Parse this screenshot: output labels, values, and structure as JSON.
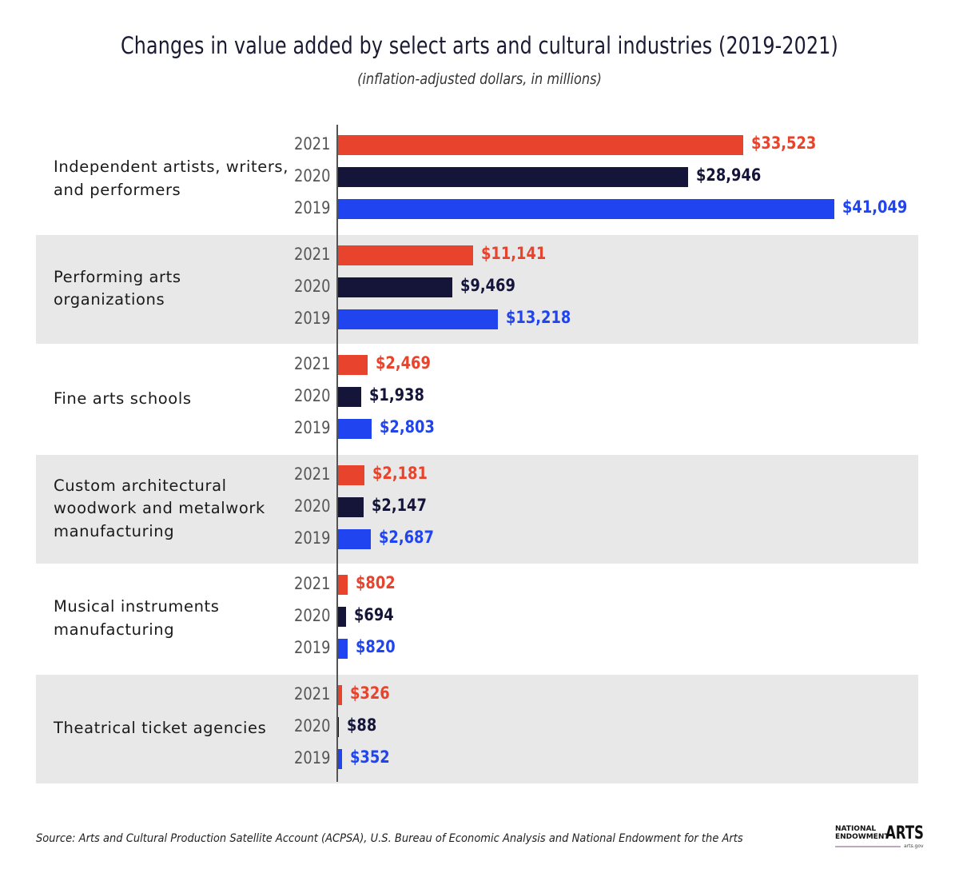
{
  "chart_data": {
    "type": "bar",
    "orientation": "horizontal",
    "title": "Changes in value added by select arts and cultural industries (2019-2021)",
    "subtitle": "(inflation-adjusted dollars, in millions)",
    "xlabel": "",
    "ylabel": "",
    "xlim": [
      0,
      41049
    ],
    "grid": false,
    "legend": "none",
    "value_prefix": "$",
    "colors": {
      "2021": "#e8432d",
      "2020": "#15153a",
      "2019": "#1f44f0"
    },
    "categories": [
      {
        "label": "Independent artists, writers, and performers",
        "lines": [
          "Independent artists, writers,",
          "and performers"
        ],
        "shaded": false,
        "bars": [
          {
            "year": "2021",
            "value": 33523,
            "label": "$33,523"
          },
          {
            "year": "2020",
            "value": 28946,
            "label": "$28,946"
          },
          {
            "year": "2019",
            "value": 41049,
            "label": "$41,049"
          }
        ]
      },
      {
        "label": "Performing arts organizations",
        "lines": [
          "Performing arts",
          "organizations"
        ],
        "shaded": true,
        "bars": [
          {
            "year": "2021",
            "value": 11141,
            "label": "$11,141"
          },
          {
            "year": "2020",
            "value": 9469,
            "label": "$9,469"
          },
          {
            "year": "2019",
            "value": 13218,
            "label": "$13,218"
          }
        ]
      },
      {
        "label": "Fine arts schools",
        "lines": [
          "Fine arts schools"
        ],
        "shaded": false,
        "bars": [
          {
            "year": "2021",
            "value": 2469,
            "label": "$2,469"
          },
          {
            "year": "2020",
            "value": 1938,
            "label": "$1,938"
          },
          {
            "year": "2019",
            "value": 2803,
            "label": "$2,803"
          }
        ]
      },
      {
        "label": "Custom architectural woodwork and metalwork manufacturing",
        "lines": [
          "Custom architectural",
          "woodwork and metalwork",
          "manufacturing"
        ],
        "shaded": true,
        "bars": [
          {
            "year": "2021",
            "value": 2181,
            "label": "$2,181"
          },
          {
            "year": "2020",
            "value": 2147,
            "label": "$2,147"
          },
          {
            "year": "2019",
            "value": 2687,
            "label": "$2,687"
          }
        ]
      },
      {
        "label": "Musical instruments manufacturing",
        "lines": [
          "Musical instruments",
          "manufacturing"
        ],
        "shaded": false,
        "bars": [
          {
            "year": "2021",
            "value": 802,
            "label": "$802"
          },
          {
            "year": "2020",
            "value": 694,
            "label": "$694"
          },
          {
            "year": "2019",
            "value": 820,
            "label": "$820"
          }
        ]
      },
      {
        "label": "Theatrical ticket agencies",
        "lines": [
          "Theatrical ticket agencies"
        ],
        "shaded": true,
        "bars": [
          {
            "year": "2021",
            "value": 326,
            "label": "$326"
          },
          {
            "year": "2020",
            "value": 88,
            "label": "$88"
          },
          {
            "year": "2019",
            "value": 352,
            "label": "$352"
          }
        ]
      }
    ]
  },
  "source": "Source: Arts and Cultural Production Satellite Account (ACPSA), U.S. Bureau of Economic Analysis and National Endowment for the Arts",
  "logo": {
    "line1": "NATIONAL",
    "line2": "ENDOWMENT",
    "word": "ARTS",
    "site": "arts.gov"
  }
}
